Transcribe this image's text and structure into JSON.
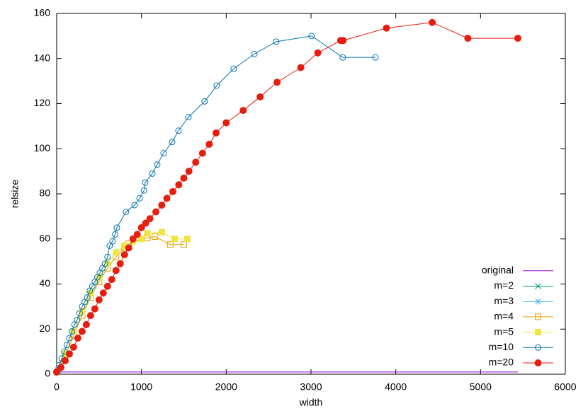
{
  "chart_data": {
    "type": "line",
    "xlabel": "width",
    "ylabel": "relsize",
    "xlim": [
      0,
      6000
    ],
    "ylim": [
      0,
      160
    ],
    "xticks": [
      0,
      1000,
      2000,
      3000,
      4000,
      5000,
      6000
    ],
    "yticks": [
      0,
      20,
      40,
      60,
      80,
      100,
      120,
      140,
      160
    ],
    "legend": "bottom-right",
    "series": [
      {
        "name": "original",
        "color": "#9400d3",
        "marker": "none",
        "x": [
          0,
          5440
        ],
        "values": [
          1,
          1
        ]
      },
      {
        "name": "m=2",
        "color": "#009e73",
        "marker": "cross",
        "x": [
          0,
          10,
          20
        ],
        "values": [
          0.5,
          1,
          2
        ]
      },
      {
        "name": "m=3",
        "color": "#56b4e9",
        "marker": "star",
        "x": [
          0,
          15,
          30
        ],
        "values": [
          0.5,
          1.5,
          3
        ]
      },
      {
        "name": "m=4",
        "color": "#e69f00",
        "marker": "square-open",
        "x": [
          0,
          100,
          200,
          300,
          400,
          500,
          600,
          700,
          800,
          850,
          1070,
          1160,
          1340,
          1500
        ],
        "values": [
          1,
          8,
          17,
          26,
          34,
          41,
          47,
          52,
          56,
          58,
          60.5,
          61,
          57.5,
          57.5
        ]
      },
      {
        "name": "m=5",
        "color": "#f0e442",
        "marker": "square-filled",
        "x": [
          0,
          100,
          200,
          300,
          400,
          500,
          600,
          700,
          800,
          900,
          1000,
          1070,
          1240,
          1390,
          1540
        ],
        "values": [
          1,
          9,
          19,
          28,
          36,
          43,
          49,
          54,
          57,
          59,
          60,
          62.5,
          63,
          60,
          60
        ]
      },
      {
        "name": "m=10",
        "color": "#0072b2",
        "marker": "circle-open",
        "x": [
          0,
          30,
          60,
          90,
          120,
          150,
          180,
          210,
          240,
          270,
          300,
          330,
          360,
          390,
          420,
          450,
          480,
          510,
          540,
          570,
          600,
          626,
          660,
          690,
          710,
          818,
          919,
          978,
          1030,
          1044,
          1128,
          1186,
          1261,
          1362,
          1437,
          1554,
          1746,
          1888,
          2088,
          2331,
          2590,
          3008,
          3375,
          3760
        ],
        "values": [
          1,
          4,
          7,
          10,
          13,
          16,
          19,
          22,
          24,
          27,
          30,
          32,
          34,
          37,
          39,
          41,
          43,
          45,
          47,
          49,
          52,
          57,
          59,
          62,
          65,
          72,
          75,
          78,
          81.5,
          85,
          89,
          93,
          98,
          103,
          108,
          114,
          121,
          128,
          135.5,
          142,
          147.5,
          150,
          140.5,
          140.5
        ]
      },
      {
        "name": "m=20",
        "color": "#e51e10",
        "marker": "circle-filled",
        "x": [
          0,
          50,
          100,
          150,
          200,
          250,
          300,
          350,
          400,
          450,
          500,
          550,
          600,
          650,
          700,
          750,
          800,
          850,
          900,
          950,
          1000,
          1050,
          1100,
          1170,
          1240,
          1300,
          1370,
          1440,
          1500,
          1560,
          1640,
          1720,
          1800,
          1880,
          2000,
          2200,
          2400,
          2600,
          2880,
          3080,
          3350,
          3380,
          3890,
          4430,
          4850,
          5440
        ],
        "values": [
          1,
          3,
          6,
          9,
          12,
          16,
          19,
          22,
          26,
          29,
          33,
          36,
          39,
          42,
          46,
          49,
          53,
          56,
          60,
          62,
          65,
          67,
          69,
          72,
          75,
          78,
          81,
          84,
          87,
          90,
          94,
          98,
          102,
          107,
          111.5,
          117,
          123,
          129.5,
          136,
          142.5,
          148,
          148,
          153.5,
          156,
          149,
          149
        ]
      }
    ]
  }
}
